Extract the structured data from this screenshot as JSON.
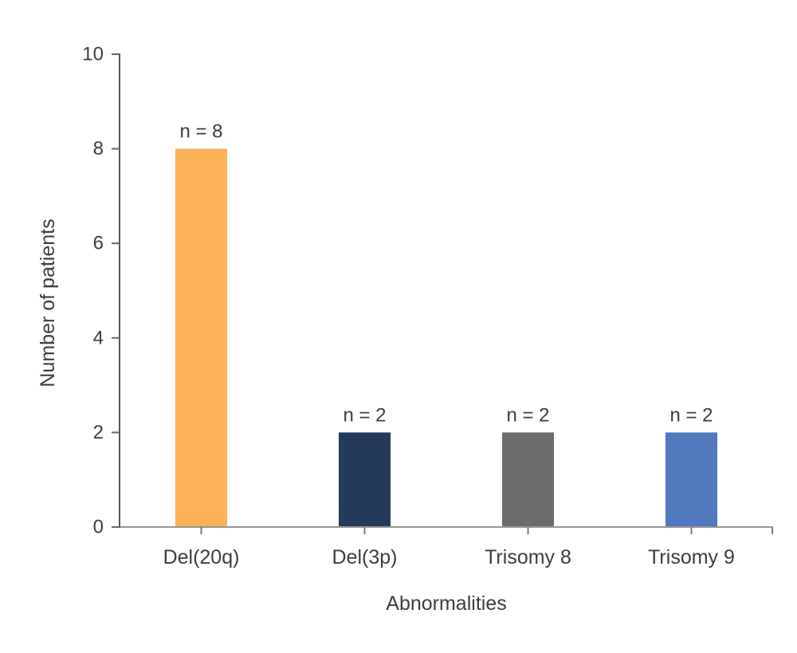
{
  "chart_data": {
    "type": "bar",
    "title": "",
    "xlabel": "Abnormalities",
    "ylabel": "Number of patients",
    "categories": [
      "Del(20q)",
      "Del(3p)",
      "Trisomy 8",
      "Trisomy 9"
    ],
    "values": [
      8,
      2,
      2,
      2
    ],
    "bar_labels": [
      "n = 8",
      "n = 2",
      "n = 2",
      "n = 2"
    ],
    "bar_colors": [
      "#FBB155",
      "#233A5C",
      "#6B6B6B",
      "#5079BE"
    ],
    "y_ticks": [
      0,
      2,
      4,
      6,
      8,
      10
    ],
    "ylim": [
      0,
      10
    ],
    "grid": false,
    "legend": false
  },
  "style": {
    "background": "#ffffff",
    "text_color": "#3d3d3d",
    "y_axis_color": "#565656",
    "y_tick_color": "#666666",
    "x_axis_color": "#979797",
    "x_tick_color": "#7a7a7a"
  }
}
